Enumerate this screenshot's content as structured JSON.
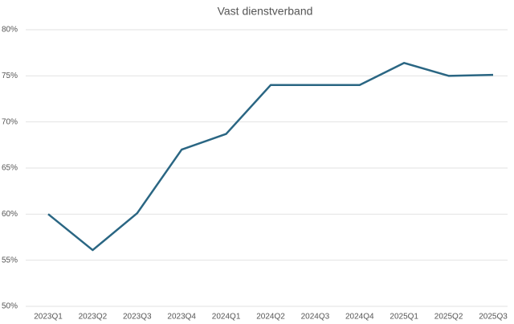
{
  "chart_data": {
    "type": "line",
    "title": "Vast dienstverband",
    "categories": [
      "2023Q1",
      "2023Q2",
      "2023Q3",
      "2023Q4",
      "2024Q1",
      "2024Q2",
      "2024Q3",
      "2024Q4",
      "2025Q1",
      "2025Q2",
      "2025Q3"
    ],
    "values": [
      60,
      56.1,
      60.1,
      67,
      68.7,
      74,
      74,
      74,
      76.4,
      75,
      75.1
    ],
    "color": "#2a6683",
    "ylim": [
      50,
      80
    ],
    "yticks": [
      {
        "value": 50,
        "label": "50%"
      },
      {
        "value": 55,
        "label": "55%"
      },
      {
        "value": 60,
        "label": "60%"
      },
      {
        "value": 65,
        "label": "65%"
      },
      {
        "value": 70,
        "label": "70%"
      },
      {
        "value": 75,
        "label": "75%"
      },
      {
        "value": 80,
        "label": "80%"
      }
    ],
    "grid": true
  }
}
